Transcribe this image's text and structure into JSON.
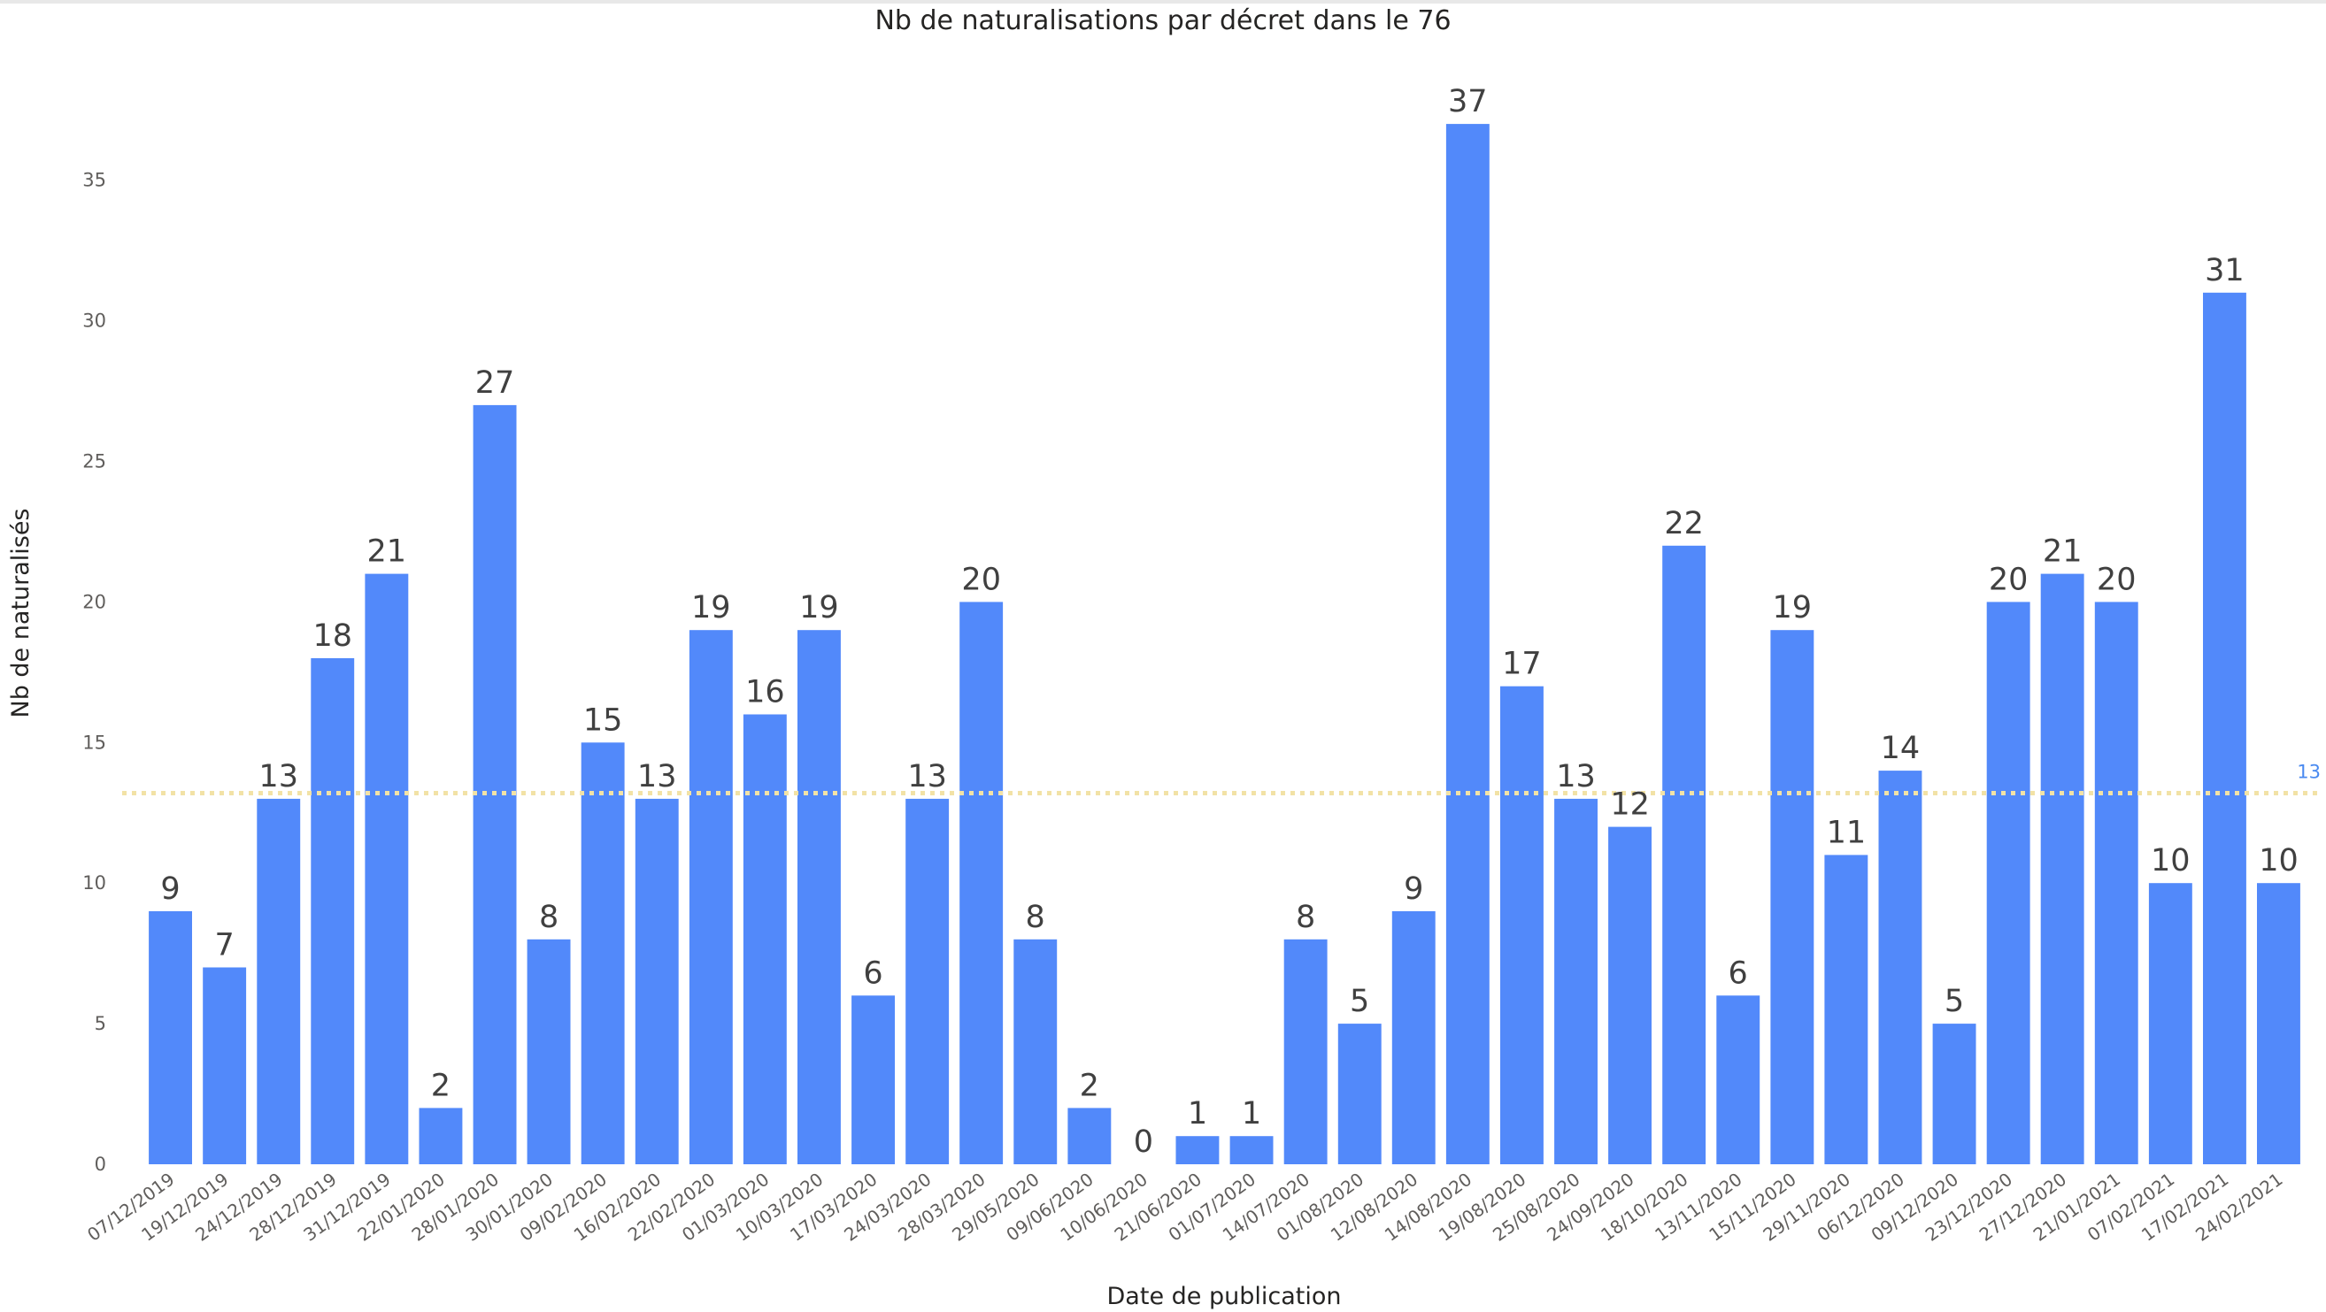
{
  "chart_data": {
    "type": "bar",
    "title": "Nb de naturalisations par décret dans le 76",
    "xlabel": "Date de publication",
    "ylabel": "Nb de naturalisés",
    "ylim": [
      0,
      39
    ],
    "yticks": [
      0,
      5,
      10,
      15,
      20,
      25,
      30,
      35
    ],
    "grid": false,
    "legend": "none",
    "bar_color": "#5289fa",
    "average_line": {
      "value": 13.2,
      "label": "13",
      "color": "#f2e2a6",
      "label_color": "#4a8af0"
    },
    "categories": [
      "07/12/2019",
      "19/12/2019",
      "24/12/2019",
      "28/12/2019",
      "31/12/2019",
      "22/01/2020",
      "28/01/2020",
      "30/01/2020",
      "09/02/2020",
      "16/02/2020",
      "22/02/2020",
      "01/03/2020",
      "10/03/2020",
      "17/03/2020",
      "24/03/2020",
      "28/03/2020",
      "29/05/2020",
      "09/06/2020",
      "10/06/2020",
      "21/06/2020",
      "01/07/2020",
      "14/07/2020",
      "01/08/2020",
      "12/08/2020",
      "14/08/2020",
      "19/08/2020",
      "25/08/2020",
      "24/09/2020",
      "18/10/2020",
      "13/11/2020",
      "15/11/2020",
      "29/11/2020",
      "06/12/2020",
      "09/12/2020",
      "23/12/2020",
      "27/12/2020",
      "21/01/2021",
      "07/02/2021",
      "17/02/2021",
      "24/02/2021"
    ],
    "values": [
      9,
      7,
      13,
      18,
      21,
      2,
      27,
      8,
      15,
      13,
      19,
      16,
      19,
      6,
      13,
      20,
      8,
      2,
      0,
      1,
      1,
      8,
      5,
      9,
      37,
      17,
      13,
      12,
      22,
      6,
      19,
      11,
      14,
      5,
      20,
      21,
      20,
      10,
      31,
      10
    ]
  }
}
